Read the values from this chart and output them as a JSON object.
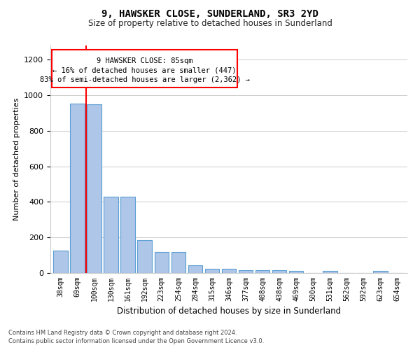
{
  "title": "9, HAWSKER CLOSE, SUNDERLAND, SR3 2YD",
  "subtitle": "Size of property relative to detached houses in Sunderland",
  "xlabel": "Distribution of detached houses by size in Sunderland",
  "ylabel": "Number of detached properties",
  "categories": [
    "38sqm",
    "69sqm",
    "100sqm",
    "130sqm",
    "161sqm",
    "192sqm",
    "223sqm",
    "254sqm",
    "284sqm",
    "315sqm",
    "346sqm",
    "377sqm",
    "408sqm",
    "438sqm",
    "469sqm",
    "500sqm",
    "531sqm",
    "562sqm",
    "592sqm",
    "623sqm",
    "654sqm"
  ],
  "values": [
    125,
    955,
    950,
    430,
    430,
    185,
    120,
    120,
    45,
    22,
    22,
    15,
    17,
    15,
    10,
    0,
    10,
    0,
    0,
    10,
    0
  ],
  "bar_color": "#aec6e8",
  "bar_edge_color": "#5a9fd4",
  "red_line_x": 1.5,
  "annotation_title": "9 HAWSKER CLOSE: 85sqm",
  "annotation_line2": "← 16% of detached houses are smaller (447)",
  "annotation_line3": "83% of semi-detached houses are larger (2,362) →",
  "ylim": [
    0,
    1280
  ],
  "yticks": [
    0,
    200,
    400,
    600,
    800,
    1000,
    1200
  ],
  "footer1": "Contains HM Land Registry data © Crown copyright and database right 2024.",
  "footer2": "Contains public sector information licensed under the Open Government Licence v3.0.",
  "bg_color": "#ffffff",
  "grid_color": "#cccccc"
}
